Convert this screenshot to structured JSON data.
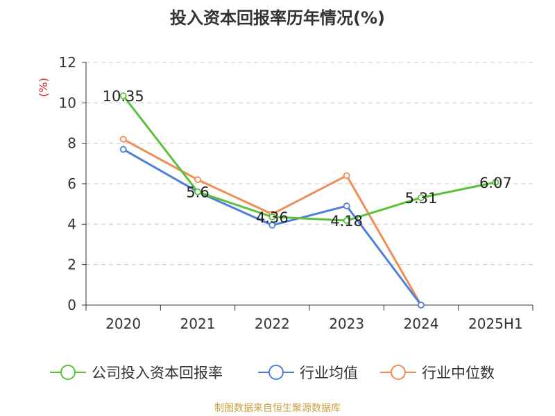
{
  "chart_data": {
    "type": "line",
    "title": "投入资本回报率历年情况(%)",
    "ylabel": "(%)",
    "categories": [
      "2020",
      "2021",
      "2022",
      "2023",
      "2024",
      "2025H1"
    ],
    "ylim": [
      0,
      12
    ],
    "yticks": [
      0,
      2,
      4,
      6,
      8,
      10,
      12
    ],
    "grid": "horizontal-dashed",
    "legend_position": "bottom",
    "series": [
      {
        "name": "公司投入资本回报率",
        "color": "#5ac13a",
        "values": [
          10.35,
          5.6,
          4.36,
          4.18,
          5.31,
          6.07
        ],
        "labels": [
          "10.35",
          "5.6",
          "4.36",
          "4.18",
          "5.31",
          "6.07"
        ]
      },
      {
        "name": "行业均值",
        "color": "#4f7fdc",
        "values": [
          7.7,
          5.6,
          3.95,
          4.9,
          0,
          null
        ]
      },
      {
        "name": "行业中位数",
        "color": "#f08c55",
        "values": [
          8.2,
          6.2,
          4.5,
          6.4,
          0,
          null
        ]
      }
    ]
  },
  "source_note": "制图数据来自恒生聚源数据库"
}
